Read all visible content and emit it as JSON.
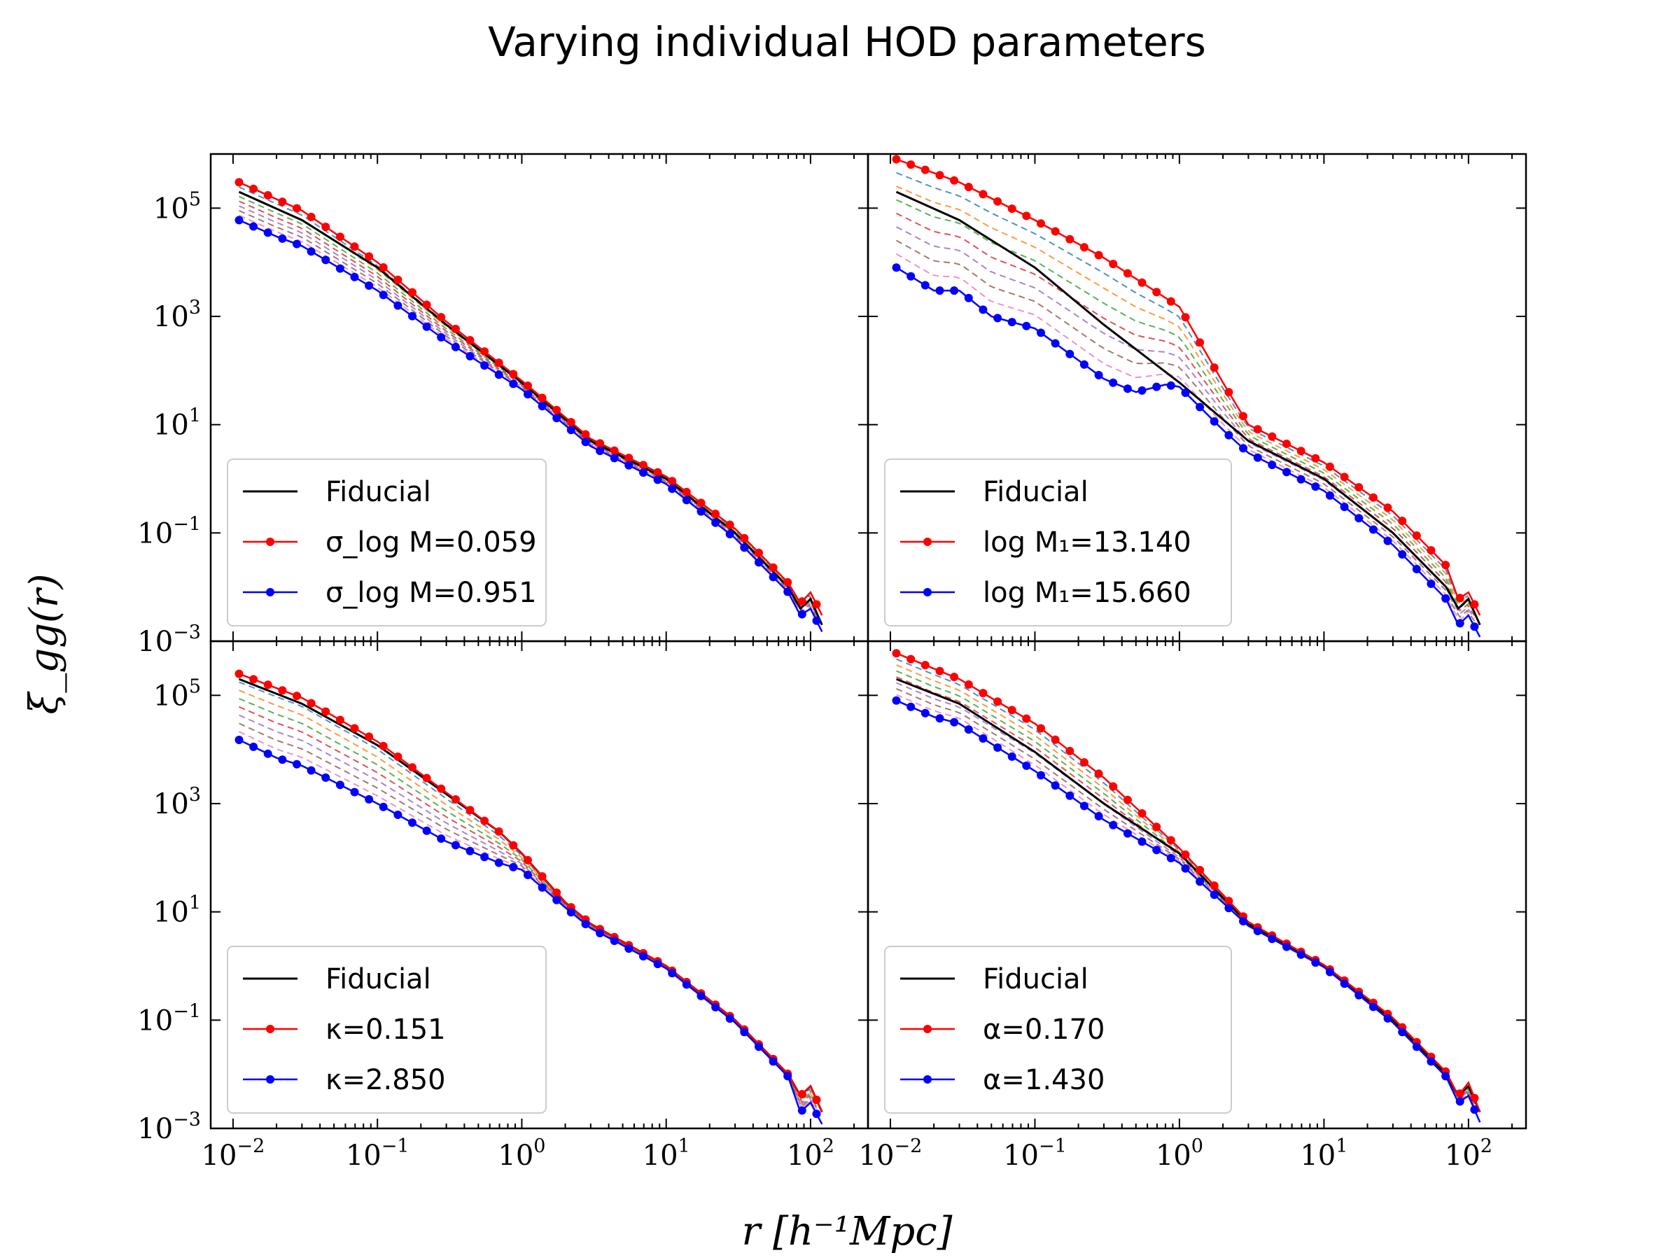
{
  "figure": {
    "title": "Varying individual HOD parameters",
    "xlabel": "r [h⁻¹Mpc]",
    "ylabel": "ξ_gg(r)"
  },
  "chart_data": [
    {
      "type": "line",
      "panel": "top-left",
      "xscale": "log",
      "yscale": "log",
      "xlim": [
        0.007,
        250
      ],
      "ylim": [
        0.001,
        1000000
      ],
      "x_ticks": [
        "10⁻²",
        "10⁻¹",
        "10⁰",
        "10¹",
        "10²"
      ],
      "y_ticks": [
        "10⁻³",
        "10⁻¹",
        "10¹",
        "10³",
        "10⁵"
      ],
      "legend": {
        "position": "lower-left",
        "entries": [
          "Fiducial",
          "σ_log M=0.059",
          "σ_log M=0.951"
        ]
      },
      "series": [
        {
          "name": "Fiducial",
          "color": "#000000",
          "style": "solid",
          "x": [
            0.011,
            0.03,
            0.1,
            0.3,
            1.0,
            3.0,
            10,
            30,
            70,
            85,
            100,
            120
          ],
          "y": [
            200000,
            60000,
            8000,
            700,
            60,
            5,
            1.0,
            0.1,
            0.01,
            0.004,
            0.006,
            0.002
          ]
        },
        {
          "name": "σ_log M=0.059",
          "color": "#ff0000",
          "style": "solid-dots",
          "x": [
            0.011,
            0.03,
            0.1,
            0.3,
            1.0,
            3.0,
            10,
            30,
            70,
            85,
            100,
            120
          ],
          "y": [
            300000,
            90000,
            10000,
            800,
            65,
            5.5,
            1.1,
            0.12,
            0.012,
            0.005,
            0.008,
            0.003
          ]
        },
        {
          "name": "σ_log M=0.951",
          "color": "#0000ff",
          "style": "solid-dots",
          "x": [
            0.011,
            0.02,
            0.03,
            0.1,
            0.3,
            1.0,
            3.0,
            10,
            30,
            70,
            85,
            100,
            120
          ],
          "y": [
            60000,
            30000,
            20000,
            3000,
            350,
            45,
            4,
            0.8,
            0.08,
            0.008,
            0.003,
            0.004,
            0.0015
          ]
        }
      ]
    },
    {
      "type": "line",
      "panel": "top-right",
      "xscale": "log",
      "yscale": "log",
      "xlim": [
        0.007,
        250
      ],
      "ylim": [
        0.001,
        1000000
      ],
      "x_ticks": [
        "10⁻²",
        "10⁻¹",
        "10⁰",
        "10¹",
        "10²"
      ],
      "y_ticks": [],
      "legend": {
        "position": "lower-left",
        "entries": [
          "Fiducial",
          "log M₁=13.140",
          "log M₁=15.660"
        ]
      },
      "series": [
        {
          "name": "Fiducial",
          "color": "#000000",
          "style": "solid",
          "x": [
            0.011,
            0.03,
            0.1,
            0.3,
            1.0,
            3.0,
            10,
            30,
            70,
            85,
            100,
            120
          ],
          "y": [
            200000,
            60000,
            8000,
            700,
            60,
            5,
            1.0,
            0.1,
            0.01,
            0.004,
            0.006,
            0.002
          ]
        },
        {
          "name": "log M₁=13.140",
          "color": "#ff0000",
          "style": "solid-dots",
          "x": [
            0.011,
            0.03,
            0.1,
            0.3,
            1.0,
            2.0,
            3.0,
            10,
            30,
            70,
            85,
            100,
            120
          ],
          "y": [
            800000,
            300000,
            60000,
            12000,
            1500,
            60,
            10,
            2.0,
            0.25,
            0.025,
            0.006,
            0.008,
            0.003
          ]
        },
        {
          "name": "log M₁=15.660",
          "color": "#0000ff",
          "style": "solid-dots",
          "x": [
            0.011,
            0.02,
            0.03,
            0.05,
            0.1,
            0.3,
            0.5,
            0.8,
            1.0,
            2.0,
            3.0,
            10,
            30,
            70,
            85,
            100,
            120
          ],
          "y": [
            8000,
            3000,
            3000,
            1000,
            600,
            70,
            40,
            55,
            50,
            8,
            3,
            0.6,
            0.06,
            0.006,
            0.002,
            0.003,
            0.0012
          ]
        }
      ]
    },
    {
      "type": "line",
      "panel": "bottom-left",
      "xscale": "log",
      "yscale": "log",
      "xlim": [
        0.007,
        250
      ],
      "ylim": [
        0.001,
        1000000
      ],
      "x_ticks": [
        "10⁻²",
        "10⁻¹",
        "10⁰",
        "10¹",
        "10²"
      ],
      "y_ticks": [
        "10⁻³",
        "10⁻¹",
        "10¹",
        "10³",
        "10⁵"
      ],
      "legend": {
        "position": "lower-left",
        "entries": [
          "Fiducial",
          "κ=0.151",
          "κ=2.850"
        ]
      },
      "series": [
        {
          "name": "Fiducial",
          "color": "#000000",
          "style": "solid",
          "x": [
            0.011,
            0.03,
            0.1,
            0.3,
            0.7,
            1.0,
            2.0,
            3.0,
            10,
            30,
            70,
            85,
            100,
            120
          ],
          "y": [
            200000,
            70000,
            12000,
            1500,
            300,
            120,
            15,
            6,
            1.0,
            0.1,
            0.01,
            0.004,
            0.006,
            0.002
          ]
        },
        {
          "name": "κ=0.151",
          "color": "#ff0000",
          "style": "solid-dots",
          "x": [
            0.011,
            0.03,
            0.1,
            0.3,
            0.7,
            1.0,
            2.0,
            3.0,
            10,
            30,
            70,
            85,
            100,
            120
          ],
          "y": [
            250000,
            90000,
            14000,
            1600,
            300,
            120,
            15,
            6,
            1.0,
            0.1,
            0.01,
            0.004,
            0.006,
            0.002
          ]
        },
        {
          "name": "κ=2.850",
          "color": "#0000ff",
          "style": "solid-dots",
          "x": [
            0.011,
            0.02,
            0.03,
            0.1,
            0.3,
            0.7,
            1.0,
            2.0,
            3.0,
            10,
            30,
            70,
            85,
            100,
            120
          ],
          "y": [
            15000,
            7000,
            5000,
            1000,
            200,
            80,
            60,
            12,
            5,
            0.9,
            0.09,
            0.009,
            0.002,
            0.003,
            0.0012
          ]
        }
      ]
    },
    {
      "type": "line",
      "panel": "bottom-right",
      "xscale": "log",
      "yscale": "log",
      "xlim": [
        0.007,
        250
      ],
      "ylim": [
        0.001,
        1000000
      ],
      "x_ticks": [
        "10⁻²",
        "10⁻¹",
        "10⁰",
        "10¹",
        "10²"
      ],
      "y_ticks": [],
      "legend": {
        "position": "lower-left",
        "entries": [
          "Fiducial",
          "α=0.170",
          "α=1.430"
        ]
      },
      "series": [
        {
          "name": "Fiducial",
          "color": "#000000",
          "style": "solid",
          "x": [
            0.011,
            0.03,
            0.1,
            0.3,
            1.0,
            3.0,
            10,
            30,
            70,
            85,
            100,
            120
          ],
          "y": [
            200000,
            70000,
            9000,
            1000,
            120,
            6,
            1.0,
            0.1,
            0.01,
            0.004,
            0.006,
            0.002
          ]
        },
        {
          "name": "α=0.170",
          "color": "#ff0000",
          "style": "solid-dots",
          "x": [
            0.011,
            0.03,
            0.1,
            0.3,
            1.0,
            3.0,
            10,
            30,
            70,
            85,
            100,
            120
          ],
          "y": [
            600000,
            200000,
            30000,
            3000,
            150,
            6.5,
            1.05,
            0.11,
            0.011,
            0.004,
            0.007,
            0.002
          ]
        },
        {
          "name": "α=1.430",
          "color": "#0000ff",
          "style": "solid-dots",
          "x": [
            0.011,
            0.02,
            0.03,
            0.1,
            0.3,
            1.0,
            3.0,
            10,
            30,
            70,
            85,
            100,
            120
          ],
          "y": [
            80000,
            40000,
            30000,
            4000,
            500,
            80,
            5.5,
            0.95,
            0.09,
            0.009,
            0.003,
            0.004,
            0.0013
          ]
        }
      ]
    }
  ]
}
